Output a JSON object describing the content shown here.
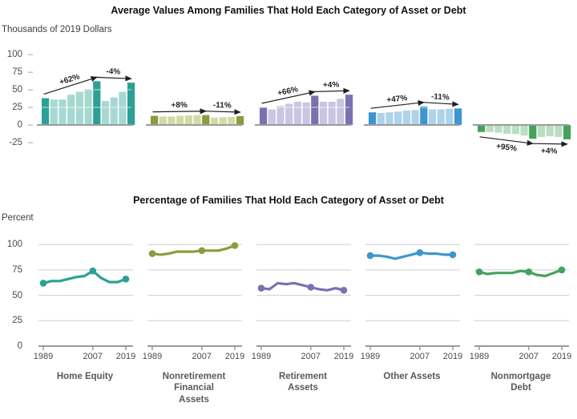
{
  "header": {
    "top_title": "Average Values Among Families That Hold Each Category of Asset or Debt",
    "top_unit": "Thousands of 2019 Dollars",
    "bottom_title": "Percentage of Families That Hold Each Category of Asset or Debt",
    "bottom_unit": "Percent"
  },
  "colors": {
    "axis": "#9b9b9b",
    "grid": "#cfcfcf",
    "tick_text": "#4a4a4a",
    "annotation": "#1f1f1f",
    "teal": "#2da095",
    "olive": "#8d9b3c",
    "purple": "#7a71b2",
    "blue": "#3e96d0",
    "green": "#43a35c"
  },
  "chart_data": [
    {
      "type": "bar",
      "title": "Average Values Among Families That Hold Each Category of Asset or Debt",
      "ylabel": "Thousands of 2019 Dollars",
      "ylim": [
        -25,
        100
      ],
      "yticks": [
        100,
        75,
        50,
        25,
        0,
        -25
      ],
      "x": [
        1989,
        1992,
        1995,
        1998,
        2001,
        2004,
        2007,
        2010,
        2013,
        2016,
        2019
      ],
      "highlight_years": [
        1989,
        2007,
        2019
      ],
      "grid": "white-overlay-on-bars",
      "series": [
        {
          "name": "Home Equity",
          "name_lines": [
            "Home Equity"
          ],
          "color": "#2da095",
          "color_light": "#a6d8d1",
          "values": [
            38,
            36,
            36,
            43,
            47,
            51,
            62,
            34,
            39,
            47,
            60
          ],
          "annotations": [
            {
              "from_year": 1989,
              "to_year": 2007,
              "label": "+62%",
              "side": "above"
            },
            {
              "from_year": 2007,
              "to_year": 2019,
              "label": "-4%",
              "side": "above"
            }
          ]
        },
        {
          "name": "Nonretirement Financial Assets",
          "name_lines": [
            "Nonretirement",
            "Financial",
            "Assets"
          ],
          "color": "#8d9b3c",
          "color_light": "#d4daa6",
          "values": [
            13,
            12,
            12,
            13,
            13.5,
            14,
            14,
            10.5,
            11,
            11.5,
            12.5
          ],
          "annotations": [
            {
              "from_year": 1989,
              "to_year": 2007,
              "label": "+8%",
              "side": "above"
            },
            {
              "from_year": 2007,
              "to_year": 2019,
              "label": "-11%",
              "side": "above"
            }
          ]
        },
        {
          "name": "Retirement Assets",
          "name_lines": [
            "Retirement",
            "Assets"
          ],
          "color": "#7a71b2",
          "color_light": "#c9c6e3",
          "values": [
            25,
            22,
            27,
            30,
            33,
            32,
            41.5,
            33,
            33,
            37,
            43
          ],
          "annotations": [
            {
              "from_year": 1989,
              "to_year": 2007,
              "label": "+66%",
              "side": "above"
            },
            {
              "from_year": 2007,
              "to_year": 2019,
              "label": "+4%",
              "side": "above"
            }
          ]
        },
        {
          "name": "Other Assets",
          "name_lines": [
            "Other Assets"
          ],
          "color": "#3e96d0",
          "color_light": "#aed2eb",
          "values": [
            18,
            17,
            18,
            19,
            20.5,
            21,
            26.5,
            22,
            22,
            23,
            23.5
          ],
          "annotations": [
            {
              "from_year": 1989,
              "to_year": 2007,
              "label": "+47%",
              "side": "above"
            },
            {
              "from_year": 2007,
              "to_year": 2019,
              "label": "-11%",
              "side": "above"
            }
          ]
        },
        {
          "name": "Nonmortgage Debt",
          "name_lines": [
            "Nonmortgage",
            "Debt"
          ],
          "color": "#43a35c",
          "color_light": "#badec3",
          "values": [
            -10,
            -10,
            -11,
            -12.5,
            -13,
            -15,
            -19.5,
            -17,
            -16,
            -17,
            -20.3
          ],
          "annotations": [
            {
              "from_year": 1989,
              "to_year": 2007,
              "label": "+95%",
              "side": "below"
            },
            {
              "from_year": 2007,
              "to_year": 2019,
              "label": "+4%",
              "side": "below"
            }
          ]
        }
      ]
    },
    {
      "type": "line",
      "title": "Percentage of Families That Hold Each Category of Asset or Debt",
      "ylabel": "Percent",
      "ylim": [
        0,
        100
      ],
      "yticks": [
        100,
        75,
        50,
        25,
        0
      ],
      "x": [
        1989,
        1992,
        1995,
        1998,
        2001,
        2004,
        2007,
        2010,
        2013,
        2016,
        2019
      ],
      "xticks": [
        1989,
        2007,
        2019
      ],
      "marker_years": [
        1989,
        2007,
        2019
      ],
      "grid": "light-gray-horizontal",
      "series": [
        {
          "name": "Home Equity",
          "color": "#2da095",
          "values": [
            62,
            64,
            64,
            66,
            68,
            69,
            74,
            67,
            63,
            63,
            66
          ]
        },
        {
          "name": "Nonretirement Financial Assets",
          "color": "#8d9b3c",
          "values": [
            91,
            90,
            91,
            93,
            93,
            93,
            94,
            94,
            94,
            96,
            99
          ]
        },
        {
          "name": "Retirement Assets",
          "color": "#7a71b2",
          "values": [
            57,
            56,
            62,
            61,
            62,
            60,
            58,
            56,
            55,
            57,
            55
          ]
        },
        {
          "name": "Other Assets",
          "color": "#3e96d0",
          "values": [
            89,
            89,
            88,
            86,
            88,
            90,
            92,
            91,
            91,
            90,
            90
          ]
        },
        {
          "name": "Nonmortgage Debt",
          "color": "#43a35c",
          "values": [
            73,
            71,
            72,
            72,
            72,
            74,
            73,
            70,
            69,
            72,
            75
          ]
        }
      ]
    }
  ]
}
